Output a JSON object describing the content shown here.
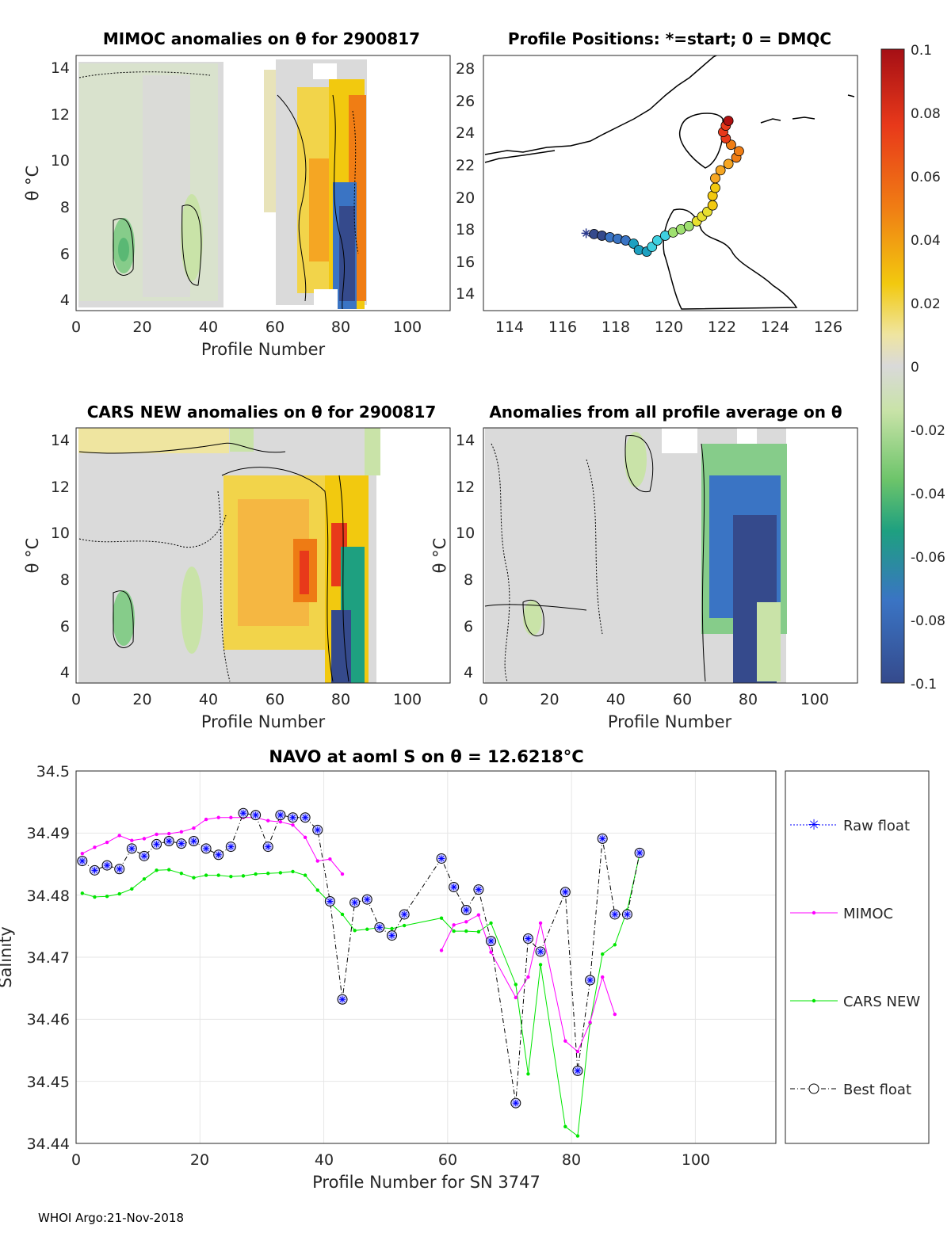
{
  "footer": "WHOI Argo:21-Nov-2018",
  "chart_data": [
    {
      "id": "mimoc",
      "type": "heatmap",
      "title": "MIMOC anomalies on θ  for 2900817",
      "xlabel": "Profile Number",
      "ylabel": "θ °C",
      "xlim": [
        0,
        113
      ],
      "ylim": [
        3.5,
        14.5
      ],
      "xticks": [
        0,
        20,
        40,
        60,
        80,
        100
      ],
      "yticks": [
        4,
        6,
        8,
        10,
        12,
        14
      ]
    },
    {
      "id": "positions",
      "type": "scatter",
      "title": "Profile Positions: *=start; 0 = DMQC",
      "xlabel": "",
      "ylabel": "",
      "xlim": [
        112.8,
        127
      ],
      "ylim": [
        13,
        29
      ],
      "xticks": [
        114,
        116,
        118,
        120,
        122,
        124,
        126
      ],
      "yticks": [
        14,
        16,
        18,
        20,
        22,
        24,
        26,
        28
      ],
      "track": [
        [
          116.7,
          17.85
        ],
        [
          117.0,
          17.8
        ],
        [
          117.3,
          17.7
        ],
        [
          117.6,
          17.6
        ],
        [
          117.9,
          17.5
        ],
        [
          118.2,
          17.4
        ],
        [
          118.5,
          17.2
        ],
        [
          118.7,
          16.8
        ],
        [
          119.0,
          16.7
        ],
        [
          119.2,
          17.0
        ],
        [
          119.4,
          17.4
        ],
        [
          119.7,
          17.7
        ],
        [
          120.0,
          17.9
        ],
        [
          120.3,
          18.1
        ],
        [
          120.6,
          18.3
        ],
        [
          120.9,
          18.6
        ],
        [
          121.1,
          18.9
        ],
        [
          121.3,
          19.2
        ],
        [
          121.5,
          19.6
        ],
        [
          121.5,
          20.2
        ],
        [
          121.6,
          20.7
        ],
        [
          121.6,
          21.3
        ],
        [
          121.8,
          21.8
        ],
        [
          122.1,
          22.2
        ],
        [
          122.4,
          22.6
        ],
        [
          122.5,
          23.0
        ],
        [
          122.2,
          23.4
        ],
        [
          122.0,
          23.8
        ],
        [
          121.9,
          24.2
        ],
        [
          122.0,
          24.6
        ],
        [
          122.1,
          24.9
        ]
      ],
      "colorbar": {
        "ticks": [
          "0.1",
          "0.08",
          "0.06",
          "0.04",
          "0.02",
          "0",
          "-0.02",
          "-0.04",
          "-0.06",
          "-0.08",
          "-0.1"
        ],
        "range": [
          -0.1,
          0.1
        ]
      }
    },
    {
      "id": "cars",
      "type": "heatmap",
      "title": "CARS NEW anomalies on θ for 2900817",
      "xlabel": "Profile Number",
      "ylabel": "θ °C",
      "xlim": [
        0,
        113
      ],
      "ylim": [
        3.5,
        14.5
      ],
      "xticks": [
        0,
        20,
        40,
        60,
        80,
        100
      ],
      "yticks": [
        4,
        6,
        8,
        10,
        12,
        14
      ]
    },
    {
      "id": "avg",
      "type": "heatmap",
      "title": "Anomalies from all profile average on θ",
      "xlabel": "Profile Number",
      "ylabel": "θ °C",
      "xlim": [
        0,
        113
      ],
      "ylim": [
        3.5,
        14.5
      ],
      "xticks": [
        0,
        20,
        40,
        60,
        80,
        100
      ],
      "yticks": [
        4,
        6,
        8,
        10,
        12,
        14
      ]
    },
    {
      "id": "salinity",
      "type": "line",
      "title": "NAVO at aoml S on θ = 12.6218°C",
      "xlabel": "Profile Number for SN 3747",
      "ylabel": "Salinity",
      "xlim": [
        0,
        113
      ],
      "ylim": [
        34.44,
        34.5
      ],
      "xticks": [
        0,
        20,
        40,
        60,
        80,
        100
      ],
      "yticks": [
        34.44,
        34.45,
        34.46,
        34.47,
        34.48,
        34.49,
        34.5
      ],
      "ytick_labels": [
        "34.44",
        "34.45",
        "34.46",
        "34.47",
        "34.48",
        "34.49",
        "34.5"
      ],
      "legend": [
        "Raw float",
        "MIMOC",
        "CARS NEW",
        "Best float"
      ],
      "series": [
        {
          "name": "Best float",
          "color": "#000000",
          "x": [
            1,
            3,
            5,
            7,
            9,
            11,
            13,
            15,
            17,
            19,
            21,
            23,
            25,
            27,
            29,
            31,
            33,
            35,
            37,
            39,
            41,
            43,
            45,
            47,
            49,
            51,
            53,
            59,
            61,
            63,
            65,
            67,
            71,
            73,
            75,
            79,
            81,
            83,
            85,
            87,
            89,
            91
          ],
          "y": [
            34.4855,
            34.484,
            34.4848,
            34.4842,
            34.4875,
            34.4863,
            34.4882,
            34.4887,
            34.4883,
            34.4887,
            34.4875,
            34.4865,
            34.4878,
            34.4932,
            34.4929,
            34.4878,
            34.4929,
            34.4925,
            34.4925,
            34.4905,
            34.479,
            34.4632,
            34.4788,
            34.4793,
            34.4748,
            34.4735,
            34.4769,
            34.4859,
            34.4813,
            34.4776,
            34.4809,
            34.4726,
            34.4465,
            34.473,
            34.4709,
            34.4805,
            34.4517,
            34.4663,
            34.4891,
            34.4769,
            34.4769,
            34.4868
          ]
        },
        {
          "name": "MIMOC",
          "color": "#ff00ff",
          "x": [
            1,
            3,
            5,
            7,
            9,
            11,
            13,
            15,
            17,
            19,
            21,
            23,
            25,
            27,
            29,
            31,
            33,
            35,
            37,
            39,
            41,
            43,
            59,
            61,
            63,
            65,
            67,
            71,
            73,
            75,
            79,
            81,
            83,
            85,
            87
          ],
          "y": [
            34.4867,
            34.4877,
            34.4885,
            34.4896,
            34.4888,
            34.4891,
            34.4898,
            34.4899,
            34.4902,
            34.4908,
            34.4922,
            34.4925,
            34.4925,
            34.4925,
            34.4925,
            34.492,
            34.4918,
            34.4913,
            34.4893,
            34.4855,
            34.4858,
            34.4834,
            34.4711,
            34.4752,
            34.4757,
            34.4768,
            34.4708,
            34.4635,
            34.4668,
            34.4755,
            34.4565,
            34.4548,
            34.4595,
            34.4668,
            34.4608
          ]
        },
        {
          "name": "CARS NEW",
          "color": "#00e600",
          "x": [
            1,
            3,
            5,
            7,
            9,
            11,
            13,
            15,
            17,
            19,
            21,
            23,
            25,
            27,
            29,
            31,
            33,
            35,
            37,
            39,
            41,
            43,
            45,
            47,
            49,
            51,
            53,
            59,
            61,
            63,
            65,
            67,
            71,
            73,
            75,
            79,
            81,
            83,
            85,
            87,
            89,
            91
          ],
          "y": [
            34.4803,
            34.4797,
            34.4798,
            34.4802,
            34.481,
            34.4826,
            34.484,
            34.4841,
            34.4835,
            34.4828,
            34.4832,
            34.4832,
            34.483,
            34.4831,
            34.4834,
            34.4835,
            34.4836,
            34.4838,
            34.4832,
            34.4808,
            34.4788,
            34.4769,
            34.4743,
            34.4745,
            34.4748,
            34.4746,
            34.4751,
            34.4763,
            34.4742,
            34.4742,
            34.4741,
            34.4755,
            34.4656,
            34.4512,
            34.4688,
            34.4427,
            34.4412,
            34.4594,
            34.4705,
            34.472,
            34.4776,
            34.4866
          ]
        }
      ]
    }
  ]
}
